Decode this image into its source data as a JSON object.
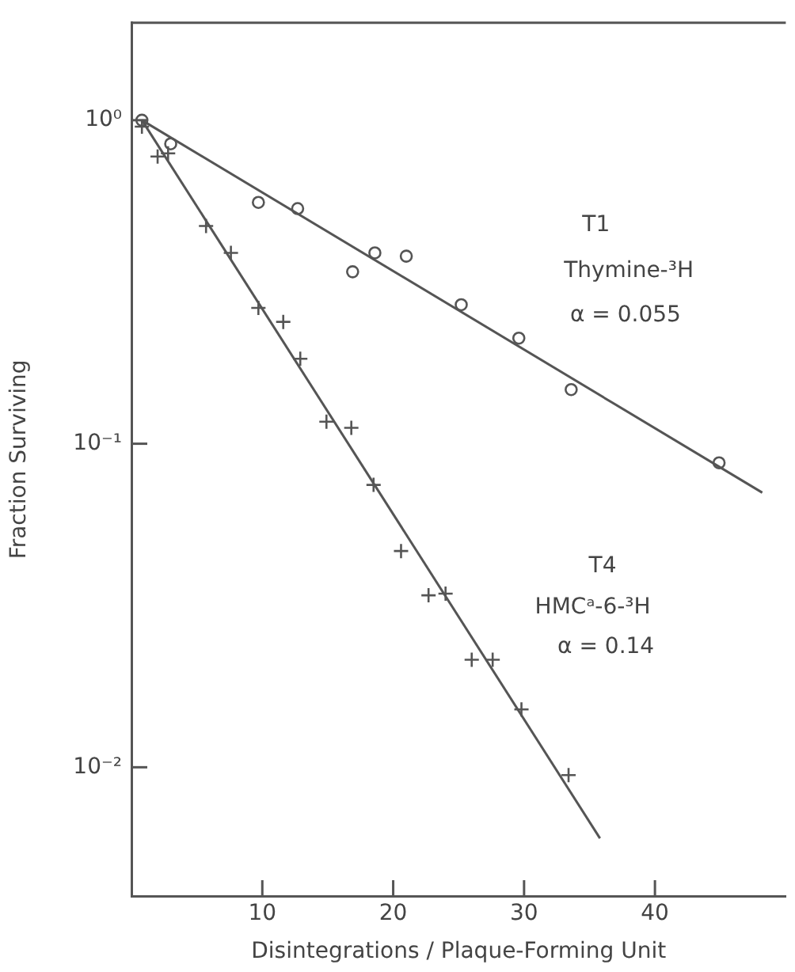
{
  "chart_data": {
    "type": "scatter",
    "xlabel": "Disintegrations / Plaque-Forming Unit",
    "ylabel": "Fraction Surviving",
    "xlim": [
      0,
      50
    ],
    "xticks": [
      10,
      20,
      30,
      40
    ],
    "ylim": [
      0.004,
      2
    ],
    "yticks": [
      {
        "value": 1,
        "label": "10⁰"
      },
      {
        "value": 0.1,
        "label": "10⁻¹"
      },
      {
        "value": 0.01,
        "label": "10⁻²"
      }
    ],
    "log": "y",
    "grid": false,
    "series": [
      {
        "type": "scatter",
        "marker": "circle",
        "color": "#555555",
        "x": [
          0.8,
          3.0,
          9.7,
          12.7,
          16.9,
          18.6,
          21.0,
          25.2,
          29.6,
          33.6,
          44.9
        ],
        "values": [
          1.0,
          0.845,
          0.557,
          0.533,
          0.34,
          0.389,
          0.38,
          0.269,
          0.212,
          0.147,
          0.0873
        ]
      },
      {
        "type": "line",
        "marker": "none",
        "line_style": "solid",
        "color": "#555555",
        "x": [
          0.8,
          48.2
        ],
        "values": [
          1.0,
          0.0706
        ]
      },
      {
        "type": "scatter",
        "marker": "cross",
        "color": "#555555",
        "x": [
          0.8,
          2.0,
          2.8,
          5.7,
          7.6,
          9.7,
          11.6,
          12.9,
          14.9,
          16.8,
          18.5,
          20.6,
          22.7,
          24.0,
          26.0,
          27.6,
          29.8,
          33.4
        ],
        "values": [
          0.955,
          0.772,
          0.79,
          0.471,
          0.389,
          0.263,
          0.238,
          0.183,
          0.117,
          0.112,
          0.0746,
          0.0466,
          0.034,
          0.0344,
          0.0215,
          0.0215,
          0.0151,
          0.00946
        ]
      },
      {
        "type": "line",
        "marker": "none",
        "line_style": "solid",
        "color": "#555555",
        "x": [
          0.8,
          35.8
        ],
        "values": [
          1.0,
          0.00603
        ]
      }
    ],
    "annotations": [
      "T1",
      "Thymine-³H",
      "α = 0.055",
      "T4",
      "HMCᵃ-6-³H",
      "α = 0.14"
    ]
  }
}
